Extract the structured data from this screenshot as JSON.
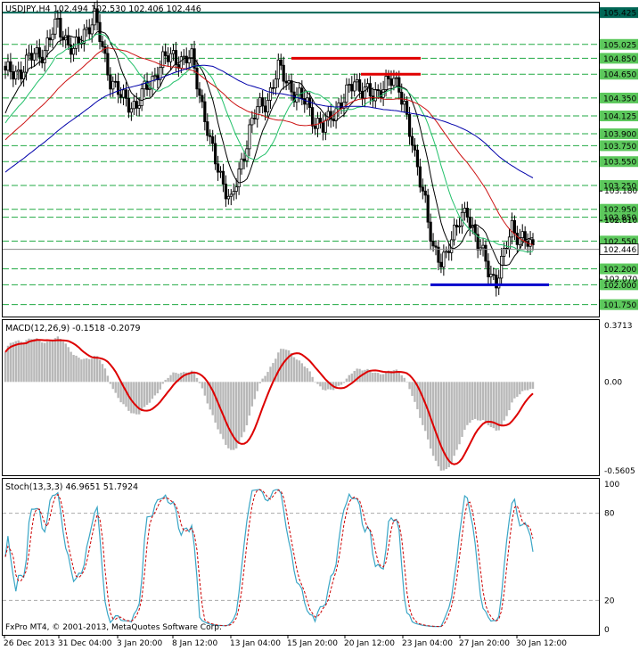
{
  "window": {
    "symbol_line": "USDJPY,H4  102.494 102.530 102.406 102.446",
    "copyright": "FxPro MT4, © 2001-2013, MetaQuotes Software Corp.",
    "current_price": "102.446"
  },
  "chart_data": [
    {
      "type": "candlestick",
      "instrument": "USDJPY",
      "timeframe": "H4",
      "ylim": [
        101.6,
        105.55
      ],
      "x_tick_labels": [
        "26 Dec 2013",
        "31 Dec 04:00",
        "3 Jan 20:00",
        "8 Jan 12:00",
        "13 Jan 04:00",
        "15 Jan 20:00",
        "20 Jan 12:00",
        "23 Jan 04:00",
        "27 Jan 20:00",
        "30 Jan 12:00"
      ],
      "price_levels": [
        {
          "label": "105.425",
          "value": 105.425,
          "kind": "resistance"
        },
        {
          "label": "105.025",
          "value": 105.025
        },
        {
          "label": "104.850",
          "value": 104.85
        },
        {
          "label": "104.650",
          "value": 104.65
        },
        {
          "label": "104.350",
          "value": 104.35
        },
        {
          "label": "104.125",
          "value": 104.125
        },
        {
          "label": "103.900",
          "value": 103.9
        },
        {
          "label": "103.750",
          "value": 103.75
        },
        {
          "label": "103.550",
          "value": 103.55
        },
        {
          "label": "103.250",
          "value": 103.25
        },
        {
          "label": "102.950",
          "value": 102.95
        },
        {
          "label": "102.850",
          "value": 102.85
        },
        {
          "label": "102.550",
          "value": 102.55
        },
        {
          "label": "102.200",
          "value": 102.2
        },
        {
          "label": "102.000",
          "value": 102.0
        },
        {
          "label": "101.750",
          "value": 101.75
        }
      ],
      "scale_labels": [
        {
          "label": "103.180",
          "value": 103.18
        },
        {
          "label": "102.810",
          "value": 102.81
        },
        {
          "label": "102.070",
          "value": 102.07
        }
      ],
      "last_price": 102.446,
      "red_levels": [
        104.85,
        104.65
      ],
      "blue_level": 102.0,
      "ma_colors": {
        "sma_fast": "#000000",
        "sma_mid": "#22c06a",
        "sma_slow": "#cc1111",
        "sma_long": "#0000aa"
      },
      "level_color": "#22aa44",
      "resistance_color": "#006655"
    },
    {
      "type": "histogram+line",
      "indicator": "MACD(12,26,9) -0.1518 -0.2079",
      "ylim": [
        -0.5605,
        0.3713
      ],
      "y_tick_labels": [
        "0.3713",
        "0.00",
        "-0.5605"
      ],
      "histogram_color": "#b8b8b8",
      "signal_color": "#dd0000"
    },
    {
      "type": "line",
      "indicator": "Stoch(13,3,3) 46.9651 51.7924",
      "ylim": [
        0,
        100
      ],
      "y_tick_labels": [
        "100",
        "80",
        "20",
        "0"
      ],
      "levels": [
        80,
        20
      ],
      "main_color": "#3aa6c6",
      "signal_color": "#cc0000"
    }
  ]
}
